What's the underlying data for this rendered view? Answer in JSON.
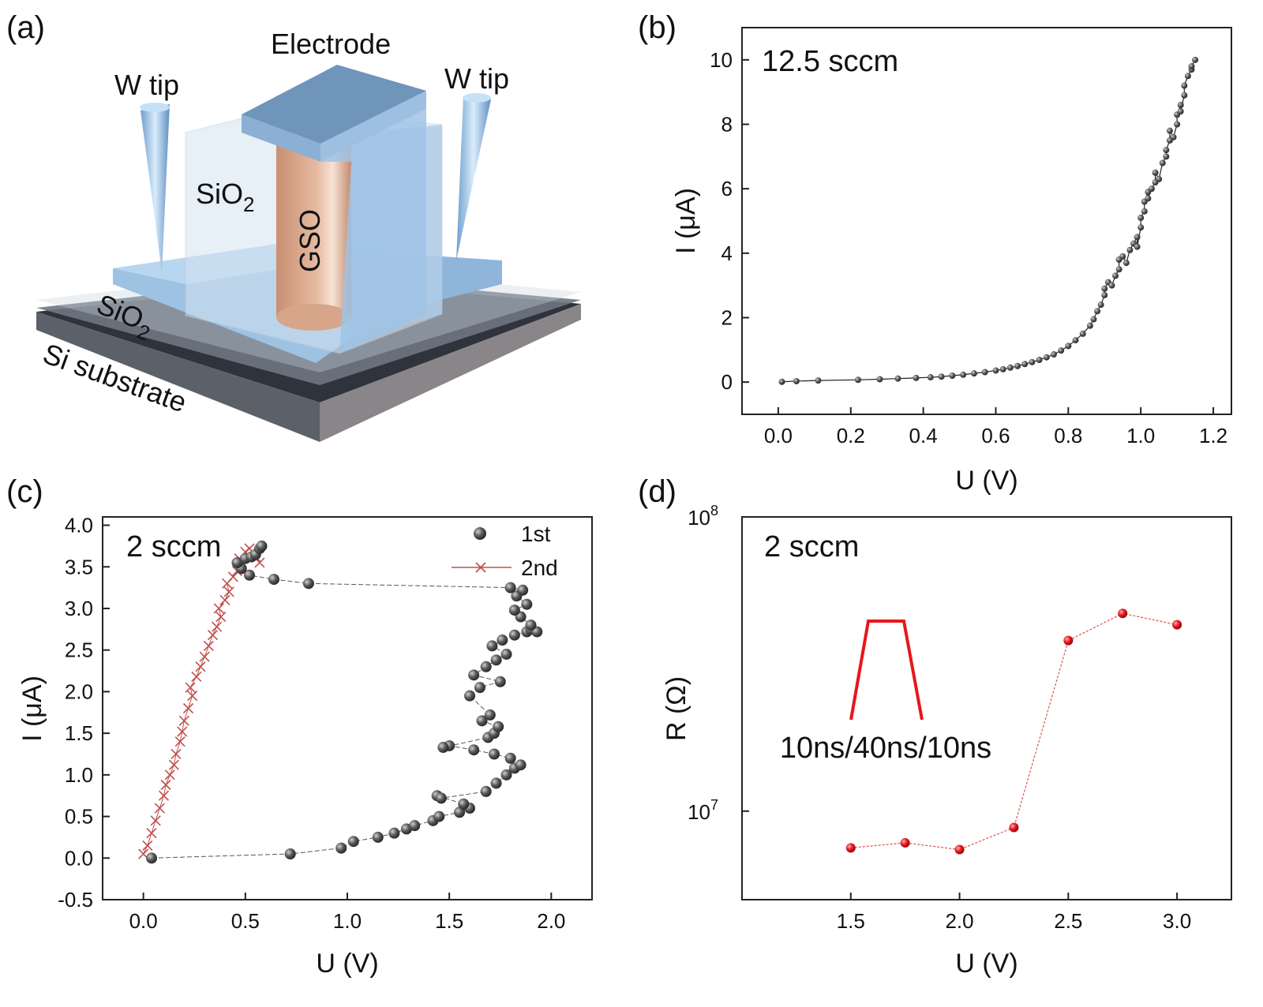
{
  "panels": {
    "a": "(a)",
    "b": "(b)",
    "c": "(c)",
    "d": "(d)"
  },
  "diagram": {
    "electrode": "Electrode",
    "wtip_left": "W tip",
    "wtip_right": "W tip",
    "sio2_upper": "SiO",
    "sio2_upper_sub": "2",
    "sio2_lower": "SiO",
    "sio2_lower_sub": "2",
    "gso": "GSO",
    "substrate": "Si substrate"
  },
  "colors": {
    "accent_red": "#e8161b",
    "point_gray": "#4a4a4a",
    "cross_red": "#c0504d",
    "electrode_blue": "#86a9c8",
    "gso_copper": "#dcae93",
    "substrate_dark": "#5d6470"
  },
  "chart_data": [
    {
      "id": "b",
      "type": "scatter",
      "title": "",
      "annotation": "12.5 sccm",
      "xlabel": "U (V)",
      "ylabel": "I (μA)",
      "xlim": [
        -0.1,
        1.25
      ],
      "ylim": [
        -1,
        11
      ],
      "xticks": [
        "0.0",
        "0.2",
        "0.4",
        "0.6",
        "0.8",
        "1.0",
        "1.2"
      ],
      "yticks": [
        "0",
        "2",
        "4",
        "6",
        "8",
        "10"
      ],
      "series": [
        {
          "x": [
            0.01,
            0.05,
            0.11,
            0.22,
            0.28,
            0.33,
            0.38,
            0.42,
            0.45,
            0.48,
            0.51,
            0.54,
            0.57,
            0.6,
            0.62,
            0.64,
            0.66,
            0.68,
            0.7,
            0.72,
            0.74,
            0.76,
            0.78,
            0.8,
            0.82,
            0.84,
            0.86,
            0.87,
            0.88,
            0.89,
            0.9,
            0.9,
            0.91,
            0.92,
            0.93,
            0.94,
            0.94,
            0.95,
            0.96,
            0.97,
            0.98,
            0.99,
            0.99,
            1.0,
            1.0,
            1.01,
            1.01,
            1.02,
            1.02,
            1.03,
            1.04,
            1.04,
            1.05,
            1.06,
            1.07,
            1.07,
            1.08,
            1.08,
            1.09,
            1.1,
            1.1,
            1.11,
            1.11,
            1.12,
            1.12,
            1.13,
            1.14,
            1.14,
            1.15
          ],
          "y": [
            0.01,
            0.03,
            0.05,
            0.07,
            0.09,
            0.11,
            0.13,
            0.15,
            0.17,
            0.2,
            0.23,
            0.27,
            0.31,
            0.36,
            0.4,
            0.45,
            0.5,
            0.56,
            0.62,
            0.69,
            0.77,
            0.86,
            0.98,
            1.12,
            1.3,
            1.5,
            1.75,
            1.95,
            2.2,
            2.4,
            2.7,
            2.9,
            3.1,
            3.0,
            3.3,
            3.5,
            3.8,
            3.9,
            3.7,
            4.1,
            4.3,
            4.5,
            4.2,
            4.8,
            5.1,
            5.3,
            5.6,
            5.9,
            5.7,
            6.0,
            6.2,
            6.5,
            6.3,
            6.8,
            7.0,
            7.2,
            7.5,
            7.8,
            7.6,
            8.0,
            8.3,
            8.6,
            8.4,
            8.9,
            9.2,
            9.5,
            9.7,
            9.8,
            10.0
          ]
        }
      ]
    },
    {
      "id": "c",
      "type": "scatter",
      "title": "",
      "annotation": "2 sccm",
      "xlabel": "U (V)",
      "ylabel": "I (μA)",
      "xlim": [
        -0.2,
        2.2
      ],
      "ylim": [
        -0.5,
        4.1
      ],
      "xticks": [
        "0.0",
        "0.5",
        "1.0",
        "1.5",
        "2.0"
      ],
      "yticks": [
        "-0.5",
        "0.0",
        "0.5",
        "1.0",
        "1.5",
        "2.0",
        "2.5",
        "3.0",
        "3.5",
        "4.0"
      ],
      "legend": "top-right",
      "series": [
        {
          "name": "1st",
          "x": [
            0.04,
            0.72,
            0.97,
            1.03,
            1.15,
            1.23,
            1.29,
            1.33,
            1.42,
            1.45,
            1.55,
            1.6,
            1.57,
            1.44,
            1.46,
            1.68,
            1.73,
            1.78,
            1.82,
            1.85,
            1.8,
            1.72,
            1.62,
            1.5,
            1.47,
            1.69,
            1.72,
            1.74,
            1.66,
            1.7,
            1.6,
            1.65,
            1.75,
            1.62,
            1.68,
            1.73,
            1.78,
            1.71,
            1.76,
            1.82,
            1.88,
            1.9,
            1.93,
            1.9,
            1.85,
            1.82,
            1.88,
            1.83,
            1.86,
            1.8,
            0.81,
            0.64,
            0.52,
            0.48,
            0.46,
            0.5,
            0.53,
            0.55,
            0.57,
            0.58
          ],
          "y": [
            0.0,
            0.05,
            0.12,
            0.2,
            0.25,
            0.3,
            0.35,
            0.39,
            0.45,
            0.5,
            0.55,
            0.6,
            0.65,
            0.75,
            0.72,
            0.8,
            0.9,
            1.0,
            1.08,
            1.12,
            1.2,
            1.25,
            1.3,
            1.35,
            1.33,
            1.45,
            1.5,
            1.58,
            1.65,
            1.72,
            1.95,
            2.05,
            2.12,
            2.2,
            2.3,
            2.38,
            2.45,
            2.55,
            2.62,
            2.68,
            2.72,
            2.75,
            2.72,
            2.8,
            2.9,
            2.98,
            3.05,
            3.15,
            3.22,
            3.25,
            3.3,
            3.35,
            3.4,
            3.48,
            3.55,
            3.6,
            3.62,
            3.65,
            3.72,
            3.75
          ]
        },
        {
          "name": "2nd",
          "x": [
            0.0,
            0.02,
            0.04,
            0.06,
            0.08,
            0.1,
            0.11,
            0.13,
            0.15,
            0.16,
            0.18,
            0.19,
            0.2,
            0.22,
            0.24,
            0.23,
            0.26,
            0.28,
            0.3,
            0.32,
            0.34,
            0.36,
            0.38,
            0.37,
            0.4,
            0.42,
            0.41,
            0.44,
            0.46,
            0.48,
            0.47,
            0.5,
            0.52,
            0.55,
            0.57
          ],
          "y": [
            0.05,
            0.15,
            0.3,
            0.45,
            0.6,
            0.75,
            0.88,
            1.0,
            1.12,
            1.25,
            1.4,
            1.52,
            1.65,
            1.8,
            1.95,
            2.05,
            2.18,
            2.3,
            2.42,
            2.55,
            2.68,
            2.78,
            2.9,
            3.0,
            3.1,
            3.2,
            3.3,
            3.38,
            3.45,
            3.52,
            3.6,
            3.68,
            3.72,
            3.62,
            3.55
          ]
        }
      ]
    },
    {
      "id": "d",
      "type": "line",
      "title": "",
      "annotation": "2 sccm",
      "inset_label": "10ns/40ns/10ns",
      "xlabel": "U (V)",
      "ylabel": "R (Ω)",
      "xlim": [
        1.0,
        3.25
      ],
      "ylim": [
        5000000,
        100000000
      ],
      "yscale": "log",
      "xticks": [
        "1.5",
        "2.0",
        "2.5",
        "3.0"
      ],
      "yticks": [
        {
          "base": "10",
          "exp": "7",
          "value": 10000000
        },
        {
          "base": "10",
          "exp": "8",
          "value": 100000000
        }
      ],
      "series": [
        {
          "x": [
            1.5,
            1.75,
            2.0,
            2.25,
            2.5,
            2.75,
            3.0
          ],
          "y": [
            7500000,
            7800000,
            7400000,
            8800000,
            38000000,
            47000000,
            43000000
          ]
        }
      ]
    }
  ]
}
